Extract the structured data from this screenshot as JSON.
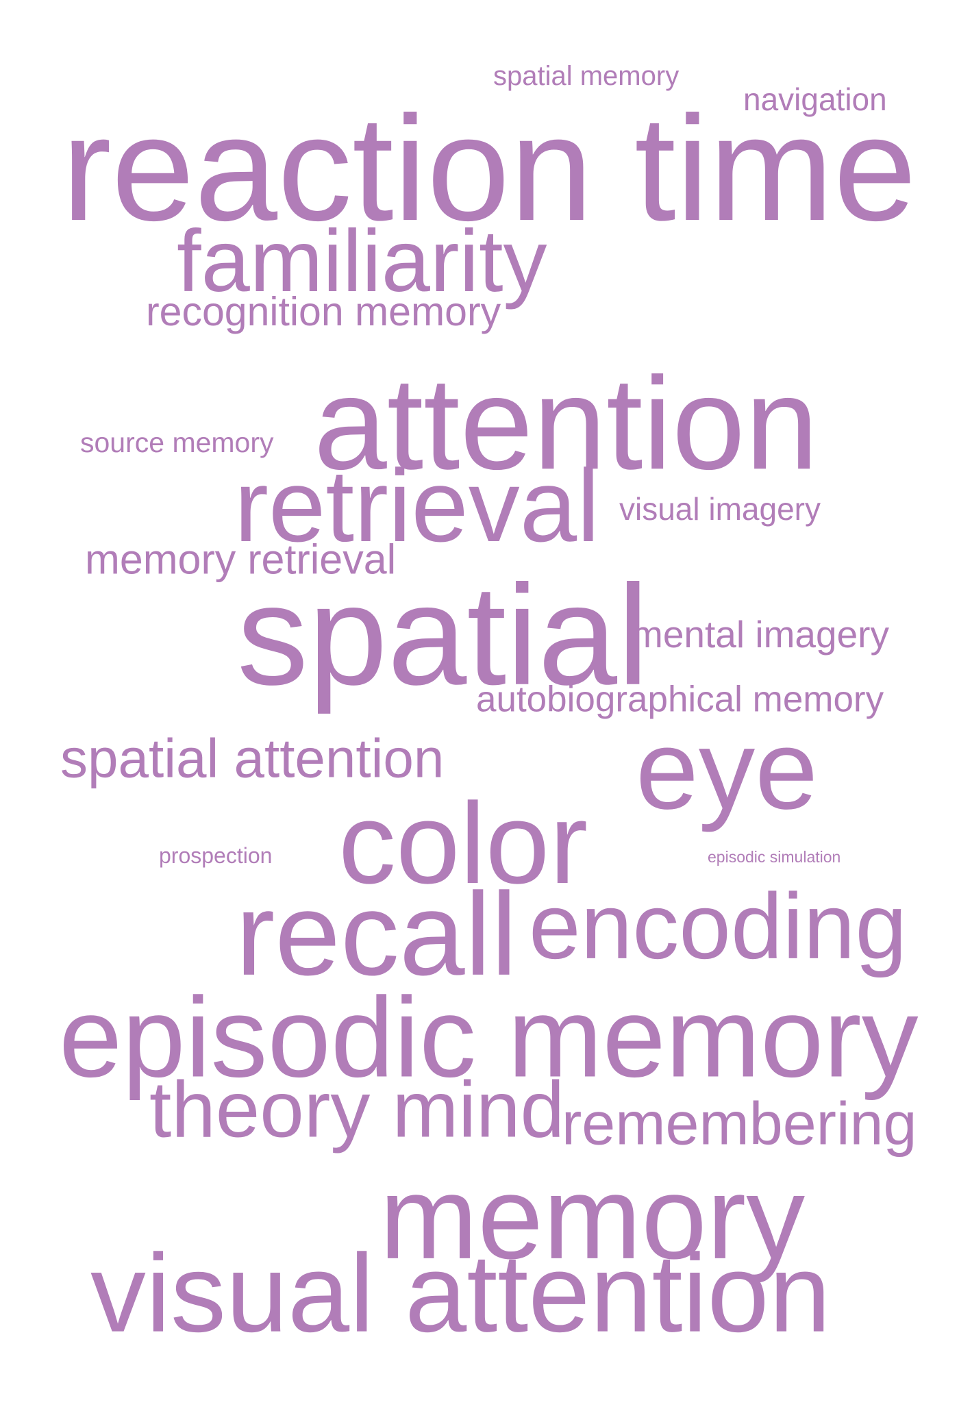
{
  "color": "#b17db8",
  "words": [
    {
      "id": "spatial-memory",
      "text": "spatial memory"
    },
    {
      "id": "navigation",
      "text": "navigation"
    },
    {
      "id": "reaction-time",
      "text": "reaction time"
    },
    {
      "id": "familiarity",
      "text": "familiarity"
    },
    {
      "id": "recognition-memory",
      "text": "recognition memory"
    },
    {
      "id": "attention",
      "text": "attention"
    },
    {
      "id": "source-memory",
      "text": "source memory"
    },
    {
      "id": "retrieval",
      "text": "retrieval"
    },
    {
      "id": "visual-imagery",
      "text": "visual imagery"
    },
    {
      "id": "memory-retrieval",
      "text": "memory retrieval"
    },
    {
      "id": "spatial",
      "text": "spatial"
    },
    {
      "id": "mental-imagery",
      "text": "mental imagery"
    },
    {
      "id": "autobiographical-memory",
      "text": "autobiographical memory"
    },
    {
      "id": "spatial-attention",
      "text": "spatial attention"
    },
    {
      "id": "eye",
      "text": "eye"
    },
    {
      "id": "color",
      "text": "color"
    },
    {
      "id": "prospection",
      "text": "prospection"
    },
    {
      "id": "episodic-simulation",
      "text": "episodic simulation"
    },
    {
      "id": "recall",
      "text": "recall"
    },
    {
      "id": "encoding",
      "text": "encoding"
    },
    {
      "id": "episodic-memory",
      "text": "episodic memory"
    },
    {
      "id": "theory-mind",
      "text": "theory mind"
    },
    {
      "id": "remembering",
      "text": "remembering"
    },
    {
      "id": "memory",
      "text": "memory"
    },
    {
      "id": "visual-attention",
      "text": "visual attention"
    }
  ]
}
